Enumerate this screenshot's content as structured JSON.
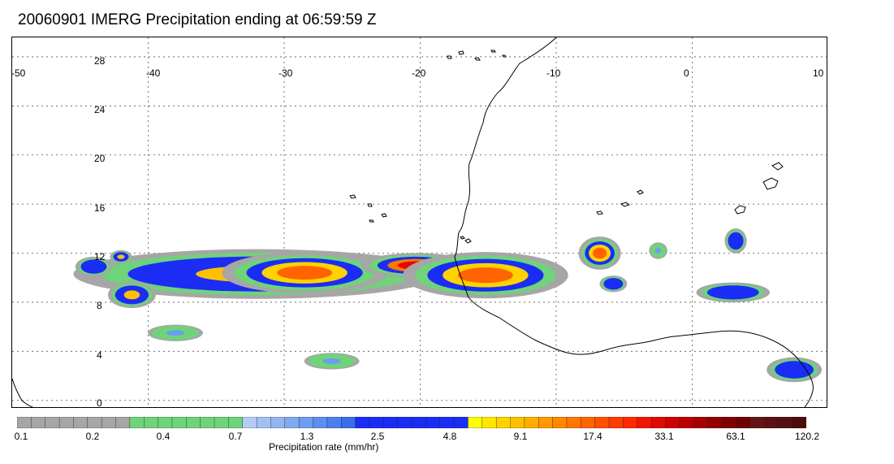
{
  "title": "20060901 IMERG Precipitation ending at 06:59:59 Z",
  "map": {
    "lon_ticks": [
      "-50",
      "-40",
      "-30",
      "-20",
      "-10",
      "0",
      "10"
    ],
    "lat_ticks": [
      "28",
      "24",
      "20",
      "16",
      "12",
      "8",
      "4",
      "0"
    ],
    "grid": "dashed",
    "coastline_color": "#000000"
  },
  "precip_cells": [
    {
      "lon": -32.0,
      "lat": 10.3,
      "rate": 9.1,
      "extent": [
        20,
        3
      ]
    },
    {
      "lon": -28.5,
      "lat": 10.4,
      "rate": 17.4,
      "extent": [
        9,
        2.5
      ]
    },
    {
      "lon": -20.3,
      "lat": 11.0,
      "rate": 33.1,
      "extent": [
        6,
        1.5
      ]
    },
    {
      "lon": -15.2,
      "lat": 10.2,
      "rate": 17.4,
      "extent": [
        9,
        2.8
      ]
    },
    {
      "lon": -41.2,
      "lat": 8.6,
      "rate": 9.1,
      "extent": [
        2.6,
        1.6
      ]
    },
    {
      "lon": -44.0,
      "lat": 10.9,
      "rate": 4.8,
      "extent": [
        2,
        1.2
      ]
    },
    {
      "lon": -42.0,
      "lat": 11.7,
      "rate": 9.1,
      "extent": [
        1.2,
        0.8
      ]
    },
    {
      "lon": -6.8,
      "lat": 12.0,
      "rate": 17.4,
      "extent": [
        2.3,
        2
      ]
    },
    {
      "lon": 3.0,
      "lat": 8.8,
      "rate": 4.8,
      "extent": [
        4,
        1.2
      ]
    },
    {
      "lon": 7.5,
      "lat": 2.5,
      "rate": 2.5,
      "extent": [
        3,
        1.5
      ]
    },
    {
      "lon": -26.5,
      "lat": 3.2,
      "rate": 1.3,
      "extent": [
        3,
        1
      ]
    },
    {
      "lon": -38.0,
      "lat": 5.5,
      "rate": 1.3,
      "extent": [
        3,
        1
      ]
    },
    {
      "lon": -5.8,
      "lat": 9.5,
      "rate": 4.8,
      "extent": [
        1.5,
        1
      ]
    },
    {
      "lon": 3.2,
      "lat": 13.0,
      "rate": 2.5,
      "extent": [
        1.2,
        1.5
      ]
    },
    {
      "lon": -2.5,
      "lat": 12.2,
      "rate": 1.3,
      "extent": [
        1,
        1
      ]
    }
  ],
  "colorbar": {
    "colors": [
      "#a6a6a6",
      "#a6a6a6",
      "#a6a6a6",
      "#a6a6a6",
      "#a6a6a6",
      "#a6a6a6",
      "#a6a6a6",
      "#a6a6a6",
      "#6fd37a",
      "#6fd37a",
      "#6fd37a",
      "#6fd37a",
      "#6fd37a",
      "#6fd37a",
      "#6fd37a",
      "#6fd37a",
      "#b5ccf3",
      "#a3c0f2",
      "#93b5f1",
      "#80a9f0",
      "#6e9cf0",
      "#5c8eef",
      "#4a7fee",
      "#3a6dec",
      "#1b2cf5",
      "#1b2cf5",
      "#1b2cf5",
      "#1b2cf5",
      "#1b2cf5",
      "#1b2cf5",
      "#1b2cf5",
      "#1b2cf5",
      "#ffff00",
      "#ffe600",
      "#ffd200",
      "#ffc000",
      "#ffae00",
      "#ff9a00",
      "#ff8800",
      "#ff7600",
      "#ff6400",
      "#ff5000",
      "#ff3c00",
      "#ff2800",
      "#f31400",
      "#e00a00",
      "#cc0000",
      "#b80000",
      "#a40000",
      "#920000",
      "#800000",
      "#700000",
      "#641414",
      "#5c1010",
      "#541010",
      "#4c0c0c"
    ],
    "labels": [
      "0.1",
      "0.2",
      "0.4",
      "0.7",
      "1.3",
      "2.5",
      "4.8",
      "9.1",
      "17.4",
      "33.1",
      "63.1",
      "120.2"
    ],
    "title": "Precipitation rate (mm/hr)"
  }
}
